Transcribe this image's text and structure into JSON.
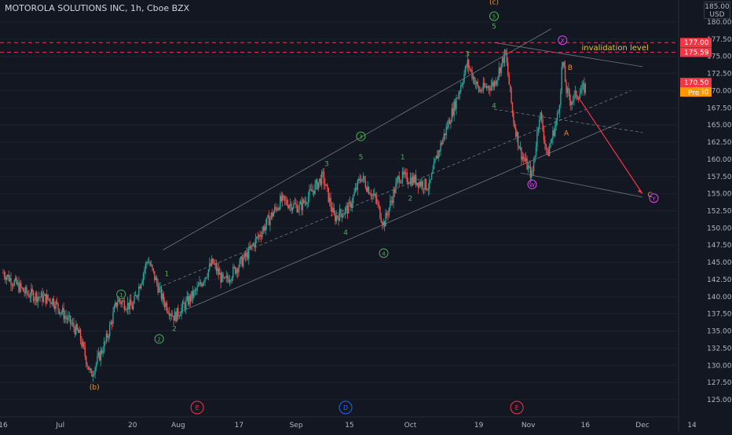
{
  "header": {
    "title": "MOTOROLA SOLUTIONS INC, 1h, Cboe BZX"
  },
  "currency": {
    "line1": "185.00",
    "line2": "USD"
  },
  "colors": {
    "background": "#131722",
    "up": "#26a69a",
    "down": "#ef5350",
    "green_label": "#4caf50",
    "orange": "#f7931a",
    "magenta": "#e040fb",
    "blue": "#2962ff",
    "red_line": "#f23645",
    "pre_tag": "#ff9800",
    "last_tag": "#f23645",
    "channel": "#8a8d96",
    "grid": "#1e222d"
  },
  "chart_data": {
    "type": "candlestick",
    "symbol": "MSI",
    "timeframe": "1h",
    "exchange": "Cboe BZX",
    "ylim": [
      122.5,
      185.0
    ],
    "yticks": [
      125.0,
      127.5,
      130.0,
      132.5,
      135.0,
      137.5,
      140.0,
      142.5,
      145.0,
      147.5,
      150.0,
      152.5,
      155.0,
      157.5,
      160.0,
      162.5,
      165.0,
      167.5,
      170.0,
      172.5,
      175.0,
      177.5,
      180.0
    ],
    "xticks": [
      "16",
      "Jul",
      "20",
      "Aug",
      "17",
      "Sep",
      "15",
      "Oct",
      "19",
      "Nov",
      "16",
      "Dec",
      "14"
    ],
    "price_path": [
      [
        "2020-06-16",
        143.5
      ],
      [
        "2020-06-22",
        140.5
      ],
      [
        "2020-06-29",
        139.5
      ],
      [
        "2020-07-06",
        134.5
      ],
      [
        "2020-07-09",
        128.5
      ],
      [
        "2020-07-13",
        133.5
      ],
      [
        "2020-07-16",
        139.5
      ],
      [
        "2020-07-20",
        138.5
      ],
      [
        "2020-07-24",
        145.5
      ],
      [
        "2020-07-28",
        139.5
      ],
      [
        "2020-07-31",
        137.0
      ],
      [
        "2020-08-06",
        141.0
      ],
      [
        "2020-08-10",
        145.0
      ],
      [
        "2020-08-13",
        142.0
      ],
      [
        "2020-08-19",
        146.0
      ],
      [
        "2020-08-24",
        150.5
      ],
      [
        "2020-08-28",
        154.0
      ],
      [
        "2020-09-02",
        153.0
      ],
      [
        "2020-09-08",
        157.5
      ],
      [
        "2020-09-11",
        151.5
      ],
      [
        "2020-09-15",
        153.0
      ],
      [
        "2020-09-18",
        157.5
      ],
      [
        "2020-09-22",
        154.0
      ],
      [
        "2020-09-24",
        150.5
      ],
      [
        "2020-09-28",
        157.5
      ],
      [
        "2020-10-02",
        157.0
      ],
      [
        "2020-10-06",
        156.0
      ],
      [
        "2020-10-08",
        160.5
      ],
      [
        "2020-10-13",
        168.5
      ],
      [
        "2020-10-16",
        174.0
      ],
      [
        "2020-10-19",
        170.0
      ],
      [
        "2020-10-23",
        171.0
      ],
      [
        "2020-10-26",
        175.5
      ],
      [
        "2020-10-28",
        166.0
      ],
      [
        "2020-10-30",
        161.0
      ],
      [
        "2020-11-02",
        157.5
      ],
      [
        "2020-11-04",
        167.0
      ],
      [
        "2020-11-06",
        160.5
      ],
      [
        "2020-11-09",
        167.0
      ],
      [
        "2020-11-10",
        174.5
      ],
      [
        "2020-11-11",
        170.0
      ],
      [
        "2020-11-12",
        168.5
      ],
      [
        "2020-11-16",
        170.5
      ]
    ],
    "price_lines": [
      {
        "price": 177.0,
        "label": "177.00"
      },
      {
        "price": 175.59,
        "label": "175.59"
      }
    ],
    "last_price": {
      "price": 170.5,
      "label": "170.50"
    },
    "pre_market": {
      "tag": "Pre",
      "price": 170.5,
      "label": "170.50"
    },
    "annotations": {
      "invalidation": "invalidation level",
      "wave_labels": [
        {
          "text": "(b)",
          "date": "2020-07-10",
          "price": 126.5,
          "color": "orange"
        },
        {
          "text": "(c)",
          "date": "2020-10-23",
          "price": 182.6,
          "color": "orange"
        },
        {
          "text": "5",
          "date": "2020-10-23",
          "price": 180.5,
          "color": "green",
          "circled": true
        },
        {
          "text": "5",
          "date": "2020-10-23",
          "price": 179.0,
          "color": "green"
        },
        {
          "text": "1",
          "date": "2020-07-17",
          "price": 140.0,
          "color": "green",
          "circled": true
        },
        {
          "text": "2",
          "date": "2020-07-27",
          "price": 133.5,
          "color": "green",
          "circled": true
        },
        {
          "text": "3",
          "date": "2020-09-18",
          "price": 163.0,
          "color": "green",
          "circled": true
        },
        {
          "text": "4",
          "date": "2020-09-24",
          "price": 146.0,
          "color": "green",
          "circled": true
        },
        {
          "text": "1",
          "date": "2020-07-29",
          "price": 143.0,
          "color": "green"
        },
        {
          "text": "2",
          "date": "2020-07-31",
          "price": 135.0,
          "color": "green"
        },
        {
          "text": "3",
          "date": "2020-09-09",
          "price": 159.0,
          "color": "green"
        },
        {
          "text": "4",
          "date": "2020-09-14",
          "price": 149.0,
          "color": "green"
        },
        {
          "text": "5",
          "date": "2020-09-18",
          "price": 160.0,
          "color": "green"
        },
        {
          "text": "1",
          "date": "2020-09-29",
          "price": 160.0,
          "color": "green"
        },
        {
          "text": "2",
          "date": "2020-10-01",
          "price": 154.0,
          "color": "green"
        },
        {
          "text": "3",
          "date": "2020-10-16",
          "price": 175.0,
          "color": "green"
        },
        {
          "text": "4",
          "date": "2020-10-23",
          "price": 167.5,
          "color": "green"
        },
        {
          "text": "X",
          "date": "2020-11-10",
          "price": 177.0,
          "color": "magenta",
          "circled": true
        },
        {
          "text": "W",
          "date": "2020-11-02",
          "price": 156.0,
          "color": "magenta",
          "circled": true
        },
        {
          "text": "Y",
          "date": "2020-12-04",
          "price": 154.0,
          "color": "magenta",
          "circled": true
        },
        {
          "text": "B",
          "date": "2020-11-12",
          "price": 173.0,
          "color": "orange"
        },
        {
          "text": "A",
          "date": "2020-11-11",
          "price": 163.5,
          "color": "orange"
        },
        {
          "text": "C",
          "date": "2020-12-03",
          "price": 154.5,
          "color": "orange"
        }
      ],
      "events": [
        {
          "text": "E",
          "date": "2020-08-06",
          "color": "#f23645"
        },
        {
          "text": "D",
          "date": "2020-09-14",
          "color": "#2962ff"
        },
        {
          "text": "E",
          "date": "2020-10-29",
          "color": "#f23645"
        }
      ]
    }
  }
}
